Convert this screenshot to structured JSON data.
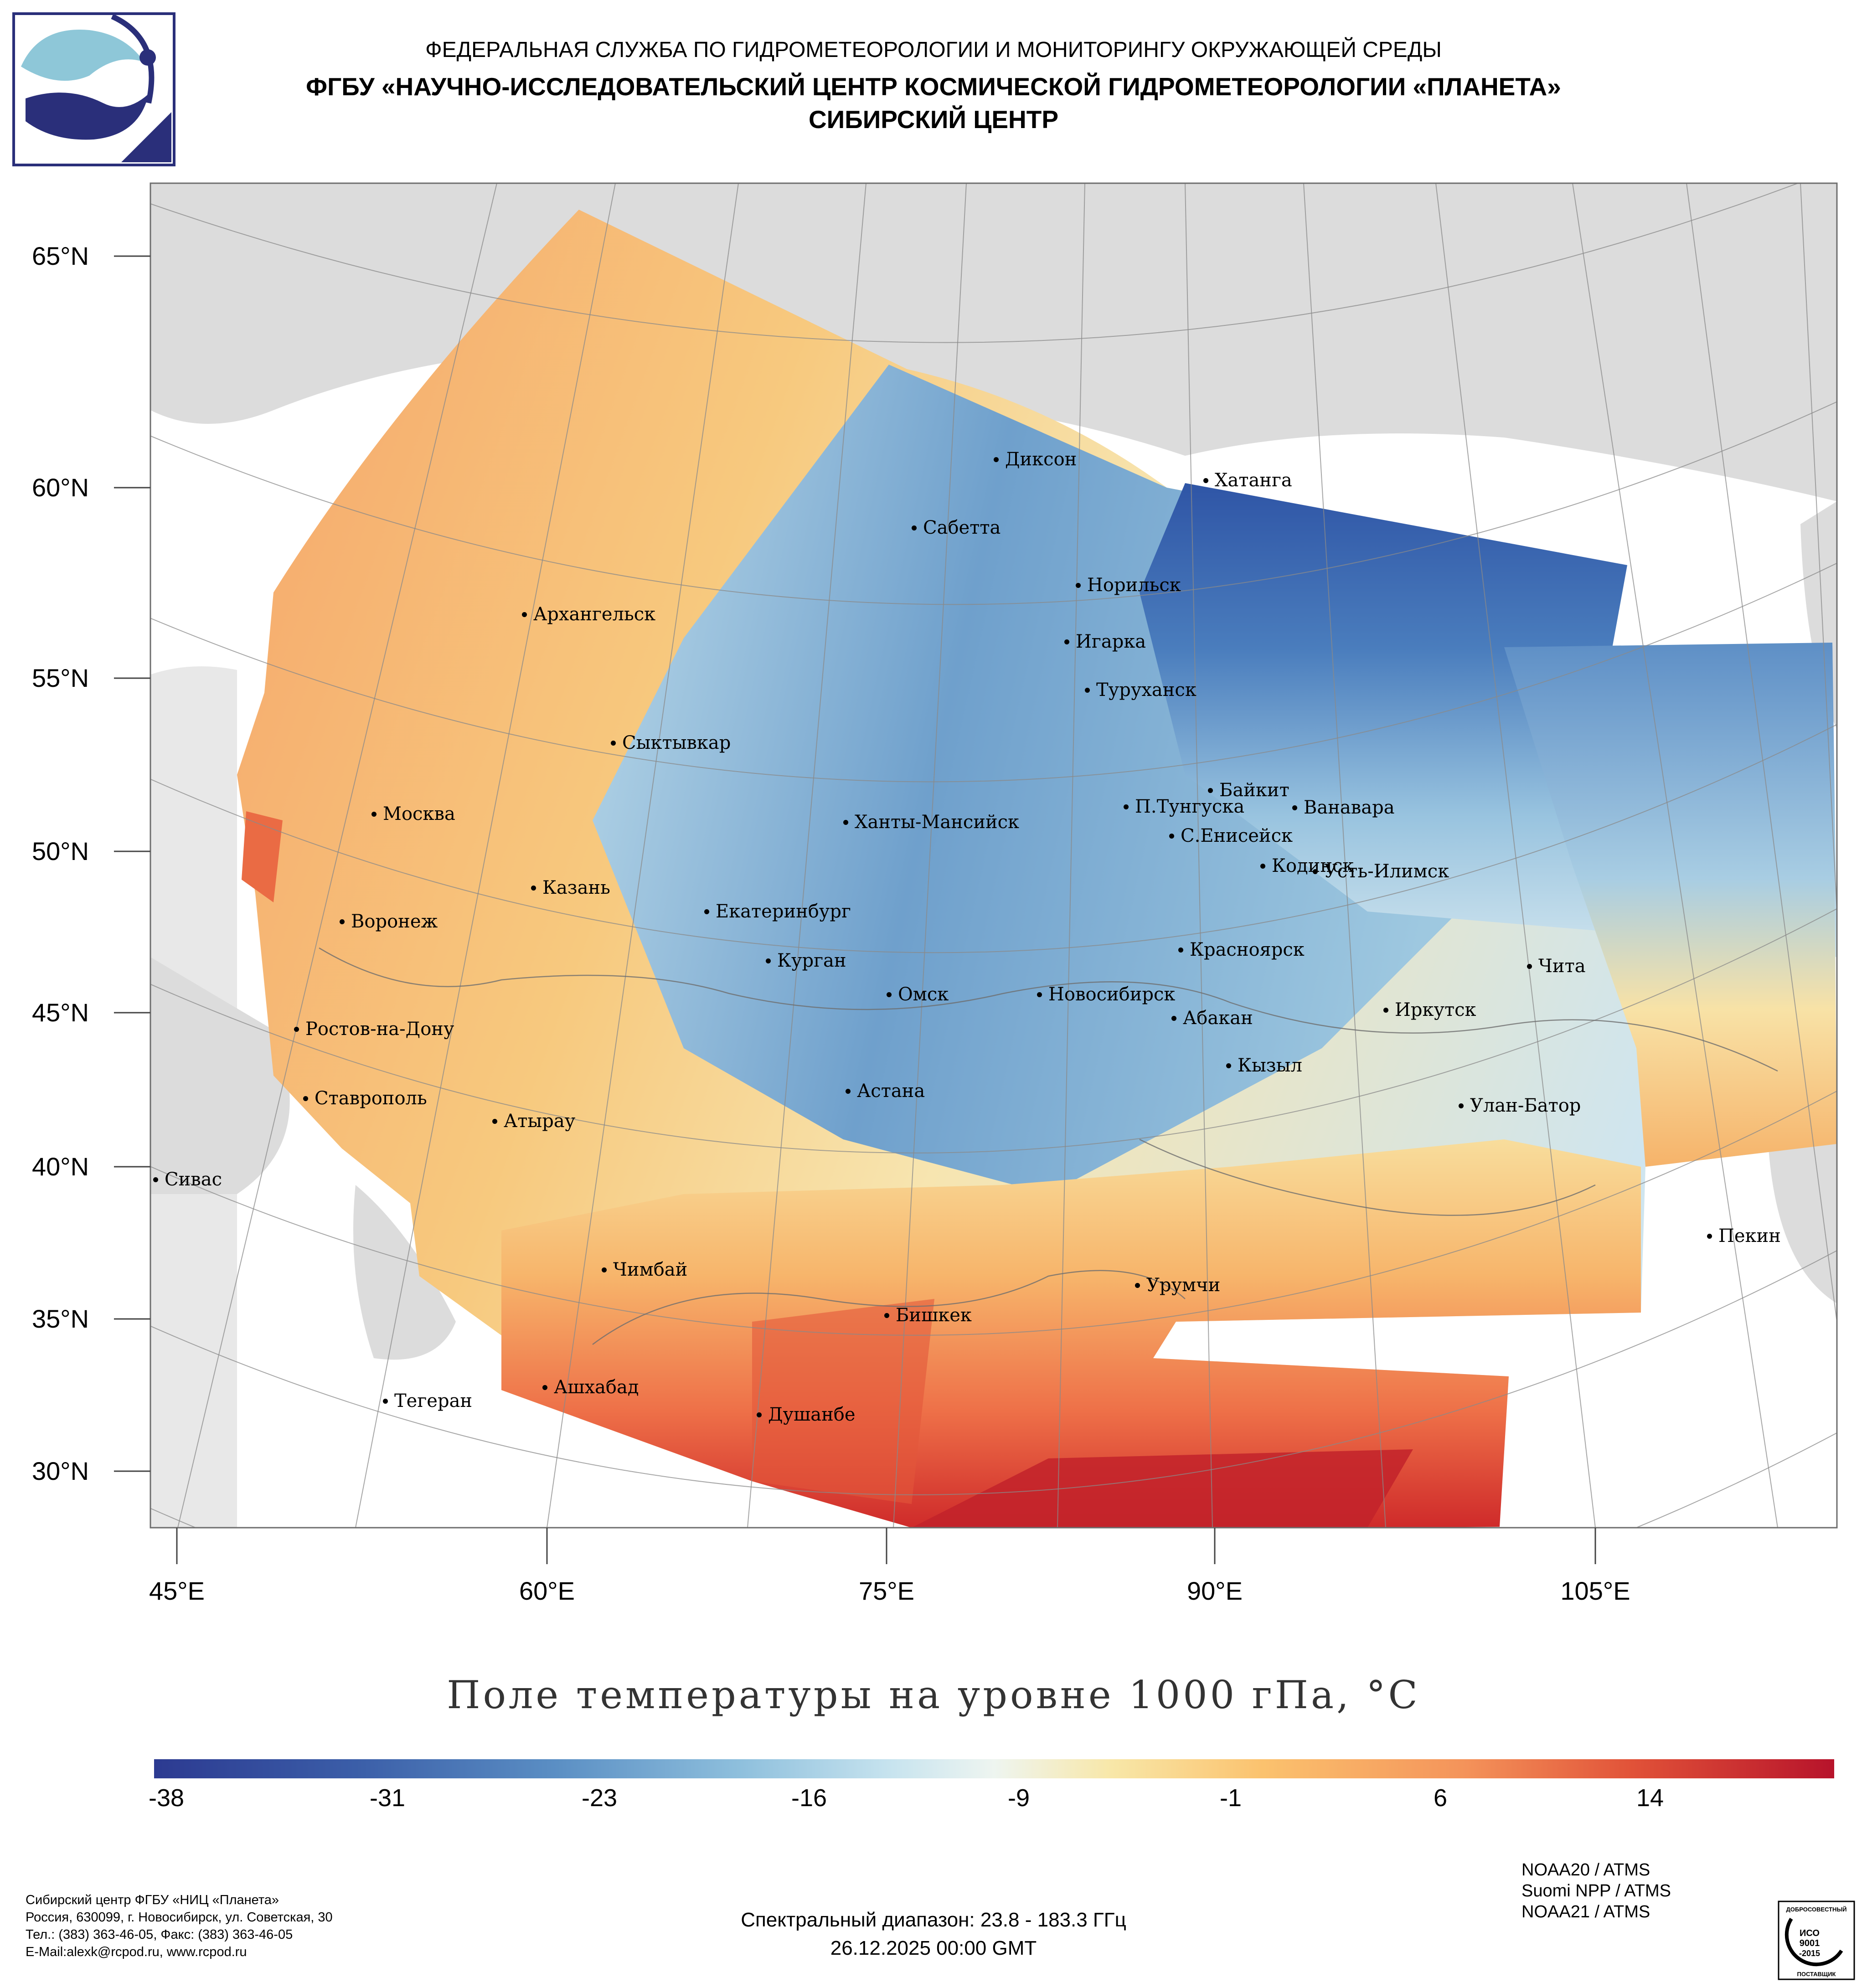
{
  "header": {
    "line1": "ФЕДЕРАЛЬНАЯ СЛУЖБА ПО ГИДРОМЕТЕОРОЛОГИИ И МОНИТОРИНГУ ОКРУЖАЮЩЕЙ СРЕДЫ",
    "line2": "ФГБУ «НАУЧНО-ИССЛЕДОВАТЕЛЬСКИЙ ЦЕНТР КОСМИЧЕСКОЙ ГИДРОМЕТЕОРОЛОГИИ «ПЛАНЕТА»",
    "line3": "СИБИРСКИЙ ЦЕНТР"
  },
  "map": {
    "lat_labels": [
      "65°N",
      "60°N",
      "55°N",
      "50°N",
      "45°N",
      "40°N",
      "35°N",
      "30°N"
    ],
    "lon_labels": [
      "45°E",
      "60°E",
      "75°E",
      "90°E",
      "105°E"
    ],
    "cities": [
      "Диксон",
      "Хатанга",
      "Сабетта",
      "Норильск",
      "Архангельск",
      "Игарка",
      "Туруханск",
      "Сыктывкар",
      "Байкит",
      "Москва",
      "П.Тунгуска",
      "Ванавара",
      "Ханты-Мансийск",
      "С.Енисейск",
      "Кодинск",
      "Усть-Илимск",
      "Казань",
      "Екатеринбург",
      "Воронеж",
      "Красноярск",
      "Курган",
      "Чита",
      "Омск",
      "Новосибирск",
      "Иркутск",
      "Абакан",
      "Ростов-на-Дону",
      "Кызыл",
      "Астана",
      "Ставрополь",
      "Улан-Батор",
      "Атырау",
      "Сивас",
      "Пекин",
      "Чимбай",
      "Урумчи",
      "Бишкек",
      "Ашхабад",
      "Душанбе",
      "Тегеран"
    ],
    "colors": {
      "land": "#dcdcdc",
      "ocean": "#ffffff",
      "grid": "#8a8a8a",
      "border": "#6e6e6e"
    }
  },
  "title": "Поле температуры на уровне 1000 гПа, °C",
  "colorbar": {
    "ticks": [
      "-38",
      "-31",
      "-23",
      "-16",
      "-9",
      "-1",
      "6",
      "14"
    ],
    "colors": [
      "#2c3a91",
      "#5b8fc4",
      "#c8e4ef",
      "#f8e7a8",
      "#f4935a",
      "#b7132b"
    ]
  },
  "footer": {
    "org_lines": [
      "Сибирский центр ФГБУ «НИЦ «Планета»",
      "Россия, 630099, г. Новосибирск, ул. Советская, 30",
      "Тел.: (383) 363-46-05, Факс: (383) 363-46-05",
      "E-Mail:alexk@rcpod.ru, www.rcpod.ru"
    ],
    "spectral": "Спектральный диапазон: 23.8 - 183.3 ГГц",
    "datetime": "26.12.2025 00:00 GMT",
    "instruments": [
      "NOAA20 / ATMS",
      "Suomi NPP / ATMS",
      "NOAA21 / ATMS"
    ],
    "cert_text": [
      "ДОБРОСОВЕСТНЫЙ",
      "ИСО",
      "9001",
      "-2015",
      "ПОСТАВЩИК"
    ]
  }
}
